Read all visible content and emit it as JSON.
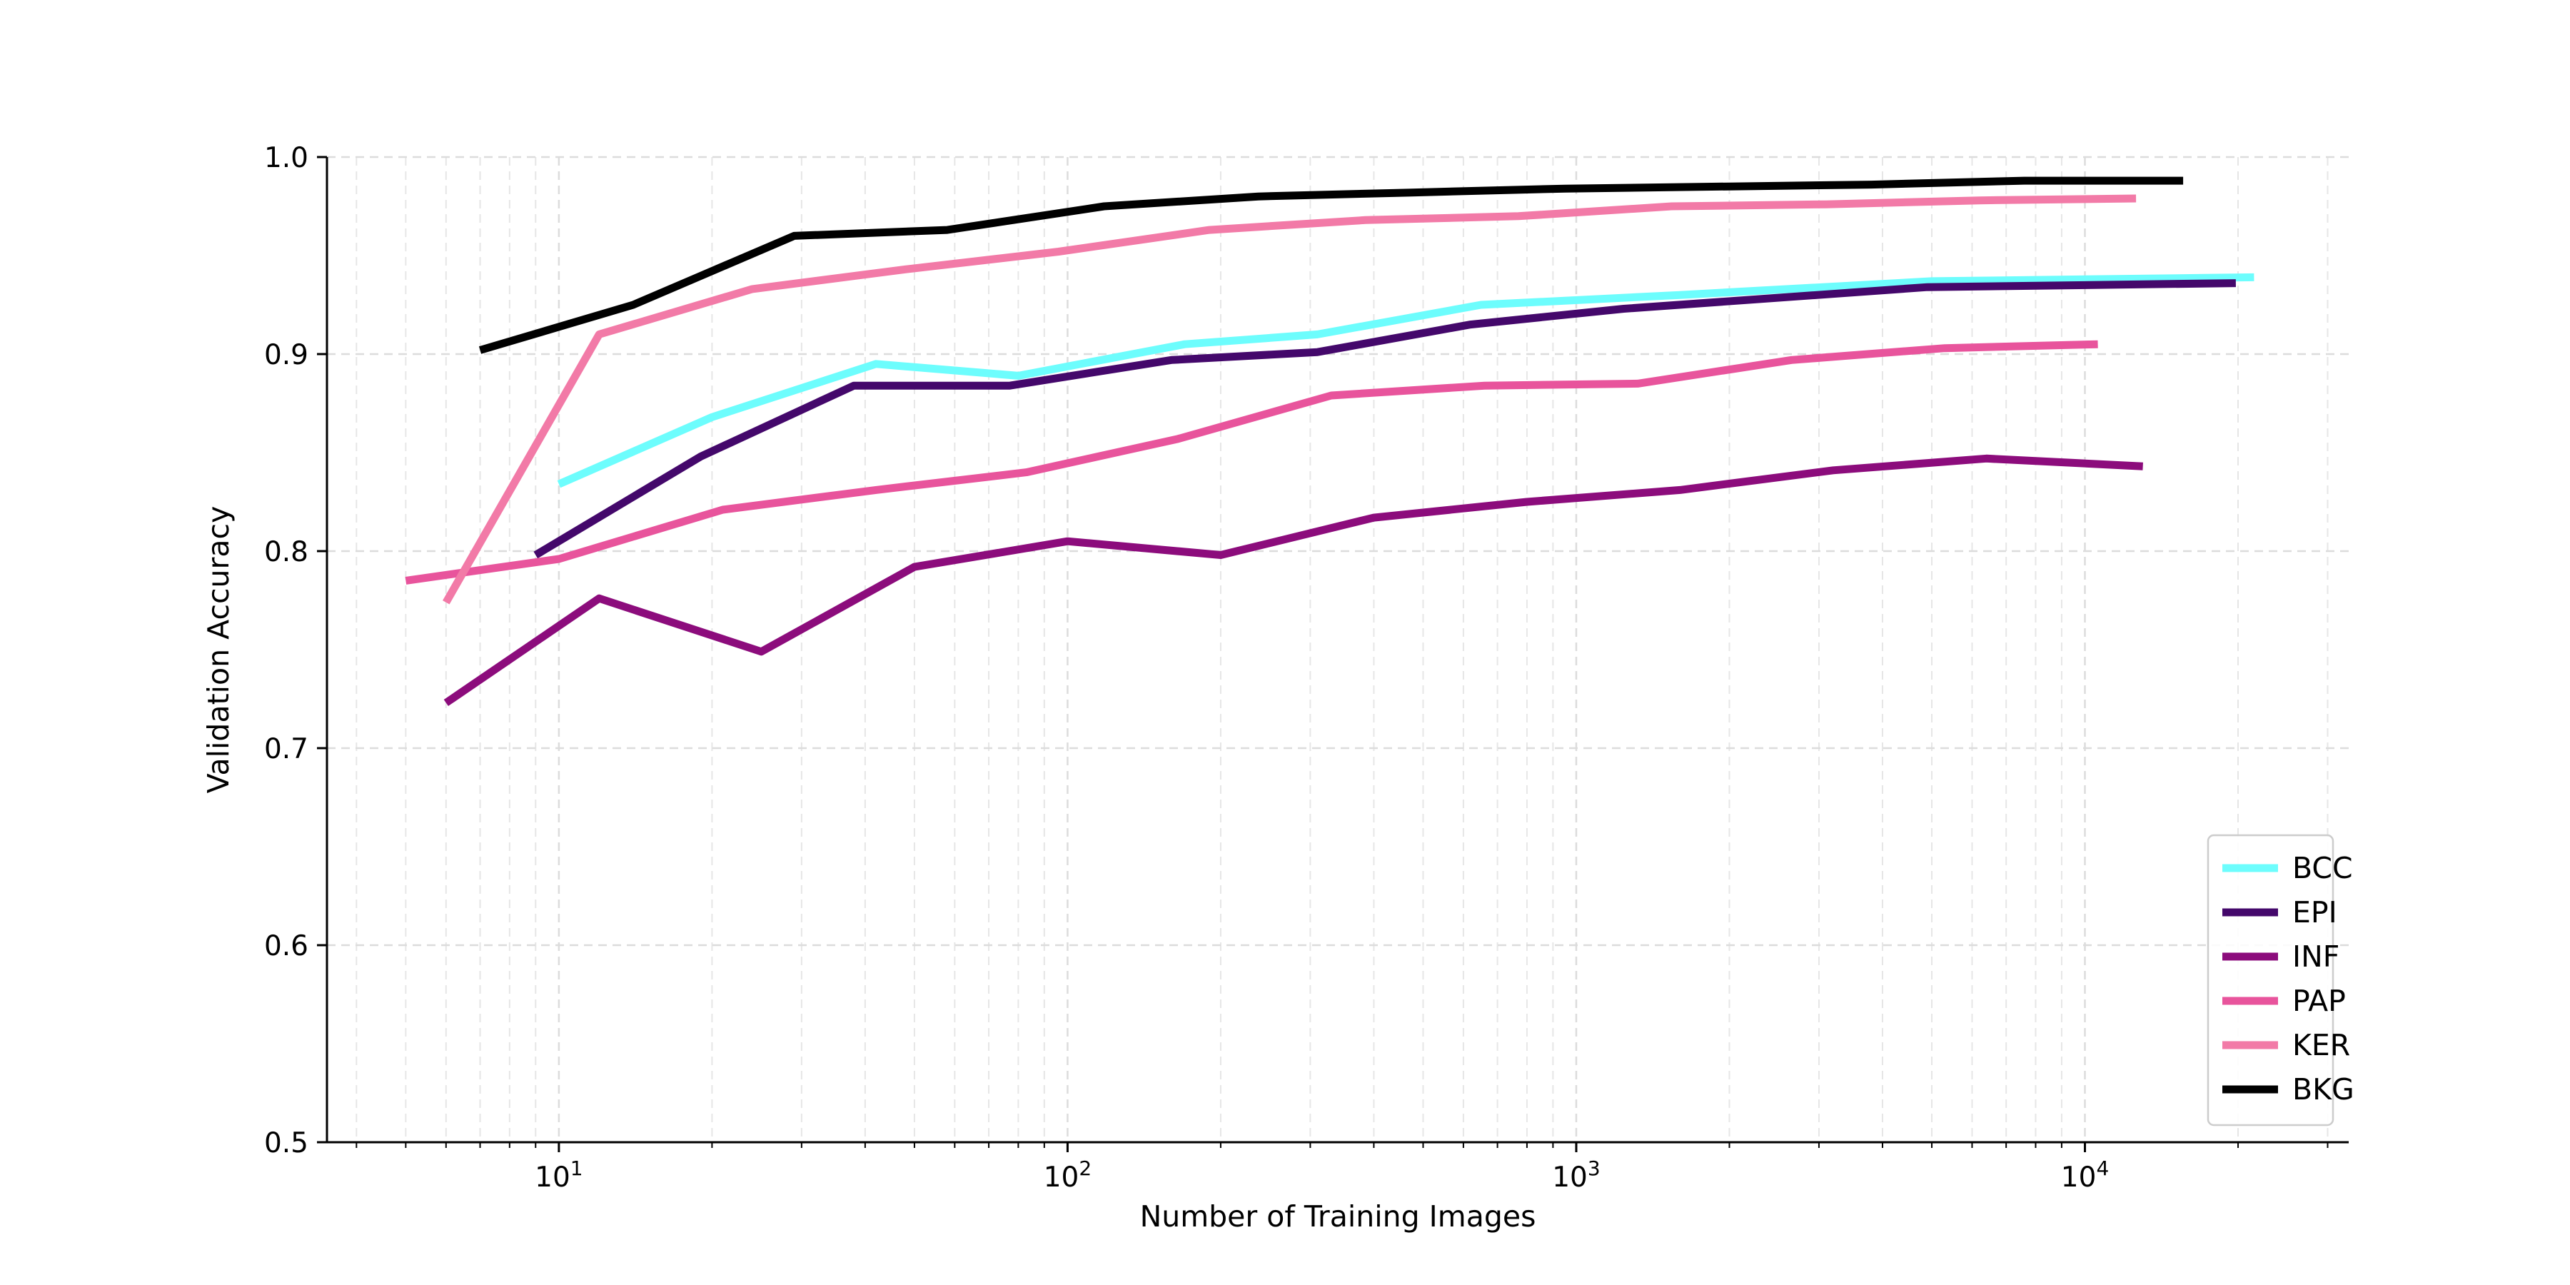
{
  "chart_data": {
    "type": "line",
    "title": "",
    "xlabel": "Number of Training Images",
    "ylabel": "Validation Accuracy",
    "x_scale": "log",
    "xlim": [
      3.5,
      33000
    ],
    "ylim": [
      0.5,
      1.0
    ],
    "x_ticks": [
      {
        "value": 10,
        "base": "10",
        "exp": "1"
      },
      {
        "value": 100,
        "base": "10",
        "exp": "2"
      },
      {
        "value": 1000,
        "base": "10",
        "exp": "3"
      },
      {
        "value": 10000,
        "base": "10",
        "exp": "4"
      }
    ],
    "y_ticks": [
      "0.5",
      "0.6",
      "0.7",
      "0.8",
      "0.9",
      "1.0"
    ],
    "grid": true,
    "legend_position": "bottom-right",
    "series": [
      {
        "name": "BCC",
        "color": "#6dfdfd",
        "x": [
          10,
          20,
          42,
          80,
          170,
          310,
          650,
          1600,
          5000,
          21500
        ],
        "y": [
          0.834,
          0.868,
          0.895,
          0.889,
          0.905,
          0.91,
          0.925,
          0.93,
          0.937,
          0.939
        ]
      },
      {
        "name": "EPI",
        "color": "#44086b",
        "x": [
          9,
          19,
          38,
          77,
          160,
          310,
          620,
          1240,
          4900,
          19800
        ],
        "y": [
          0.798,
          0.848,
          0.884,
          0.884,
          0.897,
          0.901,
          0.915,
          0.923,
          0.934,
          0.936
        ]
      },
      {
        "name": "INF",
        "color": "#8c0c7c",
        "x": [
          6,
          12,
          25,
          50,
          100,
          200,
          400,
          800,
          1600,
          3200,
          6400,
          13000
        ],
        "y": [
          0.723,
          0.776,
          0.749,
          0.792,
          0.805,
          0.798,
          0.817,
          0.825,
          0.831,
          0.841,
          0.847,
          0.843
        ]
      },
      {
        "name": "PAP",
        "color": "#e8549c",
        "x": [
          5,
          10,
          21,
          42,
          83,
          165,
          330,
          660,
          1320,
          2650,
          5300,
          10600
        ],
        "y": [
          0.785,
          0.796,
          0.821,
          0.831,
          0.84,
          0.857,
          0.879,
          0.884,
          0.885,
          0.897,
          0.903,
          0.905
        ]
      },
      {
        "name": "KER",
        "color": "#f27aa7",
        "x": [
          6,
          12,
          24,
          48,
          96,
          190,
          385,
          770,
          1540,
          3100,
          6200,
          12600
        ],
        "y": [
          0.774,
          0.91,
          0.933,
          0.943,
          0.952,
          0.963,
          0.968,
          0.97,
          0.975,
          0.976,
          0.978,
          0.979
        ]
      },
      {
        "name": "BKG",
        "color": "#000000",
        "x": [
          7,
          14,
          29,
          58,
          118,
          237,
          475,
          950,
          1900,
          3800,
          7600,
          15600
        ],
        "y": [
          0.902,
          0.925,
          0.96,
          0.963,
          0.975,
          0.98,
          0.982,
          0.984,
          0.985,
          0.986,
          0.988,
          0.988
        ]
      }
    ]
  }
}
